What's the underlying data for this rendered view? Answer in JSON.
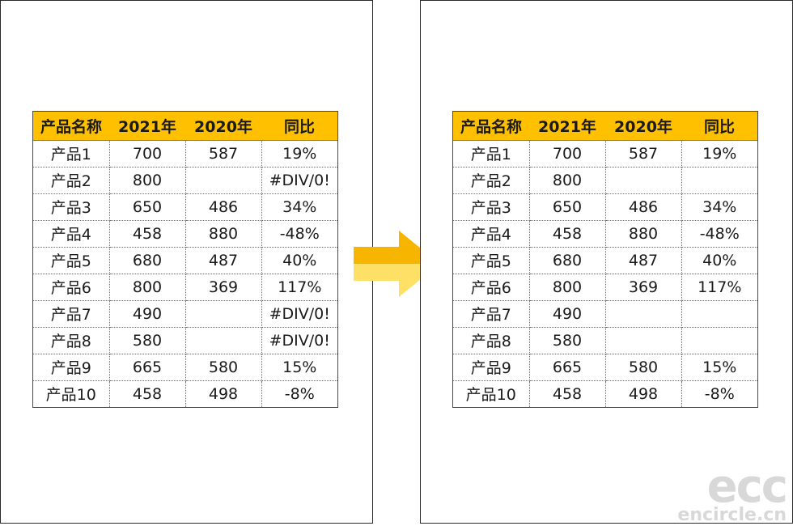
{
  "headers": [
    "产品名称",
    "2021年",
    "2020年",
    "同比"
  ],
  "before": {
    "rows": [
      [
        "产品1",
        "700",
        "587",
        "19%"
      ],
      [
        "产品2",
        "800",
        "",
        "#DIV/0!"
      ],
      [
        "产品3",
        "650",
        "486",
        "34%"
      ],
      [
        "产品4",
        "458",
        "880",
        "-48%"
      ],
      [
        "产品5",
        "680",
        "487",
        "40%"
      ],
      [
        "产品6",
        "800",
        "369",
        "117%"
      ],
      [
        "产品7",
        "490",
        "",
        "#DIV/0!"
      ],
      [
        "产品8",
        "580",
        "",
        "#DIV/0!"
      ],
      [
        "产品9",
        "665",
        "580",
        "15%"
      ],
      [
        "产品10",
        "458",
        "498",
        "-8%"
      ]
    ]
  },
  "after": {
    "rows": [
      [
        "产品1",
        "700",
        "587",
        "19%"
      ],
      [
        "产品2",
        "800",
        "",
        ""
      ],
      [
        "产品3",
        "650",
        "486",
        "34%"
      ],
      [
        "产品4",
        "458",
        "880",
        "-48%"
      ],
      [
        "产品5",
        "680",
        "487",
        "40%"
      ],
      [
        "产品6",
        "800",
        "369",
        "117%"
      ],
      [
        "产品7",
        "490",
        "",
        ""
      ],
      [
        "产品8",
        "580",
        "",
        ""
      ],
      [
        "产品9",
        "665",
        "580",
        "15%"
      ],
      [
        "产品10",
        "458",
        "498",
        "-8%"
      ]
    ]
  },
  "arrow_icon": "right-arrow-icon",
  "colors": {
    "header_fill": "#ffc000",
    "arrow_dark": "#f7b500",
    "arrow_light": "#ffe066",
    "watermark": "#d8d8d8"
  },
  "watermark": {
    "logo": "ecc",
    "site": "encircle.cn"
  }
}
